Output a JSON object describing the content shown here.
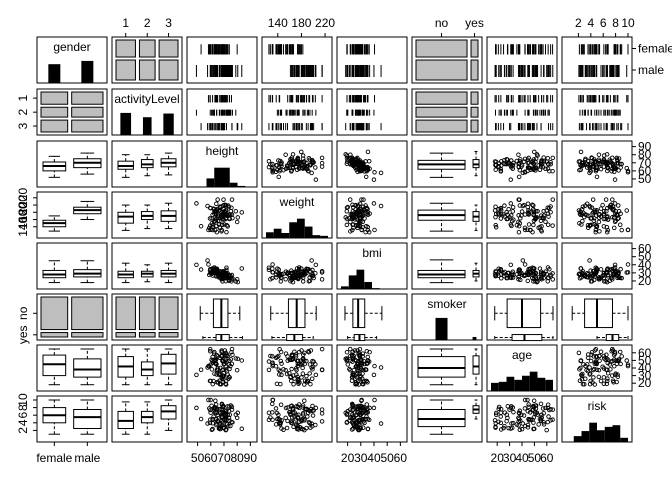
{
  "chart_data": {
    "type": "pairs-matrix",
    "title": "",
    "variables": [
      {
        "name": "gender",
        "kind": "factor",
        "levels": [
          "female",
          "male"
        ],
        "counts": [
          46,
          54
        ]
      },
      {
        "name": "activityLevel",
        "kind": "factor",
        "levels": [
          "1",
          "2",
          "3"
        ],
        "counts": [
          36,
          29,
          35
        ]
      },
      {
        "name": "height",
        "kind": "numeric",
        "range": [
          45,
          92
        ],
        "ticks": [
          "50",
          "60",
          "70",
          "80",
          "90"
        ]
      },
      {
        "name": "weight",
        "kind": "numeric",
        "range": [
          120,
          225
        ],
        "ticks": [
          "140",
          "180",
          "220"
        ]
      },
      {
        "name": "bmi",
        "kind": "numeric",
        "range": [
          15,
          62
        ],
        "ticks": [
          "20",
          "30",
          "40",
          "50",
          "60"
        ]
      },
      {
        "name": "smoker",
        "kind": "factor",
        "levels": [
          "no",
          "yes"
        ],
        "counts": [
          88,
          12
        ]
      },
      {
        "name": "age",
        "kind": "numeric",
        "range": [
          15,
          65
        ],
        "ticks": [
          "20",
          "30",
          "40",
          "50",
          "60"
        ]
      },
      {
        "name": "risk",
        "kind": "numeric",
        "range": [
          0,
          10
        ],
        "ticks": [
          "2",
          "4",
          "6",
          "8",
          "10"
        ]
      }
    ],
    "top_axis_labels": [
      {
        "column": 1,
        "labels": [
          "1",
          "2",
          "3"
        ]
      },
      {
        "column": 3,
        "labels": [
          "140",
          "180",
          "220"
        ]
      },
      {
        "column": 5,
        "labels": [
          "no",
          "yes"
        ]
      },
      {
        "column": 7,
        "labels": [
          "2",
          "4",
          "6",
          "8",
          "10"
        ]
      }
    ],
    "right_axis_labels": [
      {
        "row": 0,
        "labels": [
          "female",
          "male"
        ]
      },
      {
        "row": 2,
        "labels": [
          "50",
          "60",
          "70",
          "80",
          "90"
        ]
      },
      {
        "row": 4,
        "labels": [
          "20",
          "30",
          "40",
          "50",
          "60"
        ]
      },
      {
        "row": 6,
        "labels": [
          "20",
          "30",
          "40",
          "50",
          "60"
        ]
      }
    ],
    "bottom_axis_labels": [
      {
        "column": 0,
        "labels": [
          "female",
          "male"
        ]
      },
      {
        "column": 2,
        "labels": [
          "50",
          "60",
          "70",
          "80",
          "90"
        ]
      },
      {
        "column": 4,
        "labels": [
          "20",
          "30",
          "40",
          "50",
          "60"
        ]
      },
      {
        "column": 6,
        "labels": [
          "20",
          "30",
          "40",
          "50",
          "60"
        ]
      }
    ],
    "left_axis_labels": [
      {
        "row": 1,
        "labels": [
          "1",
          "2",
          "3"
        ]
      },
      {
        "row": 3,
        "labels": [
          "140",
          "160",
          "180",
          "200",
          "220"
        ]
      },
      {
        "row": 5,
        "labels": [
          "no",
          "yes"
        ]
      },
      {
        "row": 7,
        "labels": [
          "2",
          "4",
          "6",
          "8",
          "10"
        ]
      }
    ],
    "group_summaries": {
      "height_by_gender": {
        "female": [
          52,
          60,
          66,
          71,
          78
        ],
        "male": [
          56,
          64,
          70,
          75,
          82
        ]
      },
      "weight_by_gender": {
        "female": [
          128,
          140,
          150,
          158,
          170
        ],
        "male": [
          160,
          176,
          186,
          194,
          210
        ]
      },
      "bmi_by_gender": {
        "female": [
          18,
          24,
          28,
          33,
          45
        ],
        "male": [
          18,
          25,
          29,
          34,
          45
        ]
      },
      "age_by_gender": {
        "female": [
          18,
          30,
          45,
          57,
          65
        ],
        "male": [
          18,
          28,
          38,
          52,
          65
        ]
      },
      "risk_by_gender": {
        "female": [
          1,
          4,
          6,
          8,
          10
        ],
        "male": [
          1,
          2.5,
          5.5,
          7.5,
          10
        ]
      },
      "height_by_activity": {
        "1": [
          52,
          62,
          66,
          72,
          80
        ],
        "2": [
          54,
          64,
          68,
          74,
          80
        ],
        "3": [
          55,
          65,
          70,
          75,
          82
        ]
      },
      "weight_by_activity": {
        "1": [
          130,
          150,
          168,
          180,
          200
        ],
        "2": [
          135,
          160,
          170,
          182,
          200
        ],
        "3": [
          135,
          155,
          170,
          184,
          205
        ]
      },
      "bmi_by_activity": {
        "1": [
          18,
          24,
          28,
          32,
          42
        ],
        "2": [
          19,
          25,
          29,
          32,
          40
        ],
        "3": [
          18,
          25,
          29,
          33,
          42
        ]
      },
      "age_by_activity": {
        "1": [
          18,
          28,
          42,
          55,
          65
        ],
        "2": [
          18,
          30,
          38,
          48,
          65
        ],
        "3": [
          18,
          32,
          46,
          58,
          65
        ]
      },
      "risk_by_activity": {
        "1": [
          1,
          2.5,
          4.5,
          7,
          9.5
        ],
        "2": [
          1,
          4,
          5.5,
          7,
          9.5
        ],
        "3": [
          2,
          5,
          7,
          8.5,
          10
        ]
      },
      "age_by_smoker": {
        "no": [
          18,
          28,
          40,
          55,
          65
        ],
        "yes": [
          18,
          32,
          42,
          56,
          65
        ]
      },
      "risk_by_smoker": {
        "no": [
          1,
          3,
          5,
          7.5,
          10
        ],
        "yes": [
          5,
          6.5,
          7.5,
          8.5,
          10
        ]
      },
      "height_by_smoker": {
        "no": [
          52,
          62,
          68,
          73,
          82
        ],
        "yes": [
          54,
          64,
          68,
          74,
          84
        ]
      },
      "weight_by_smoker": {
        "no": [
          128,
          158,
          172,
          186,
          205
        ],
        "yes": [
          130,
          155,
          168,
          182,
          200
        ]
      },
      "bmi_by_smoker": {
        "no": [
          18,
          24,
          28,
          33,
          46
        ],
        "yes": [
          20,
          25,
          29,
          33,
          42
        ]
      }
    }
  }
}
